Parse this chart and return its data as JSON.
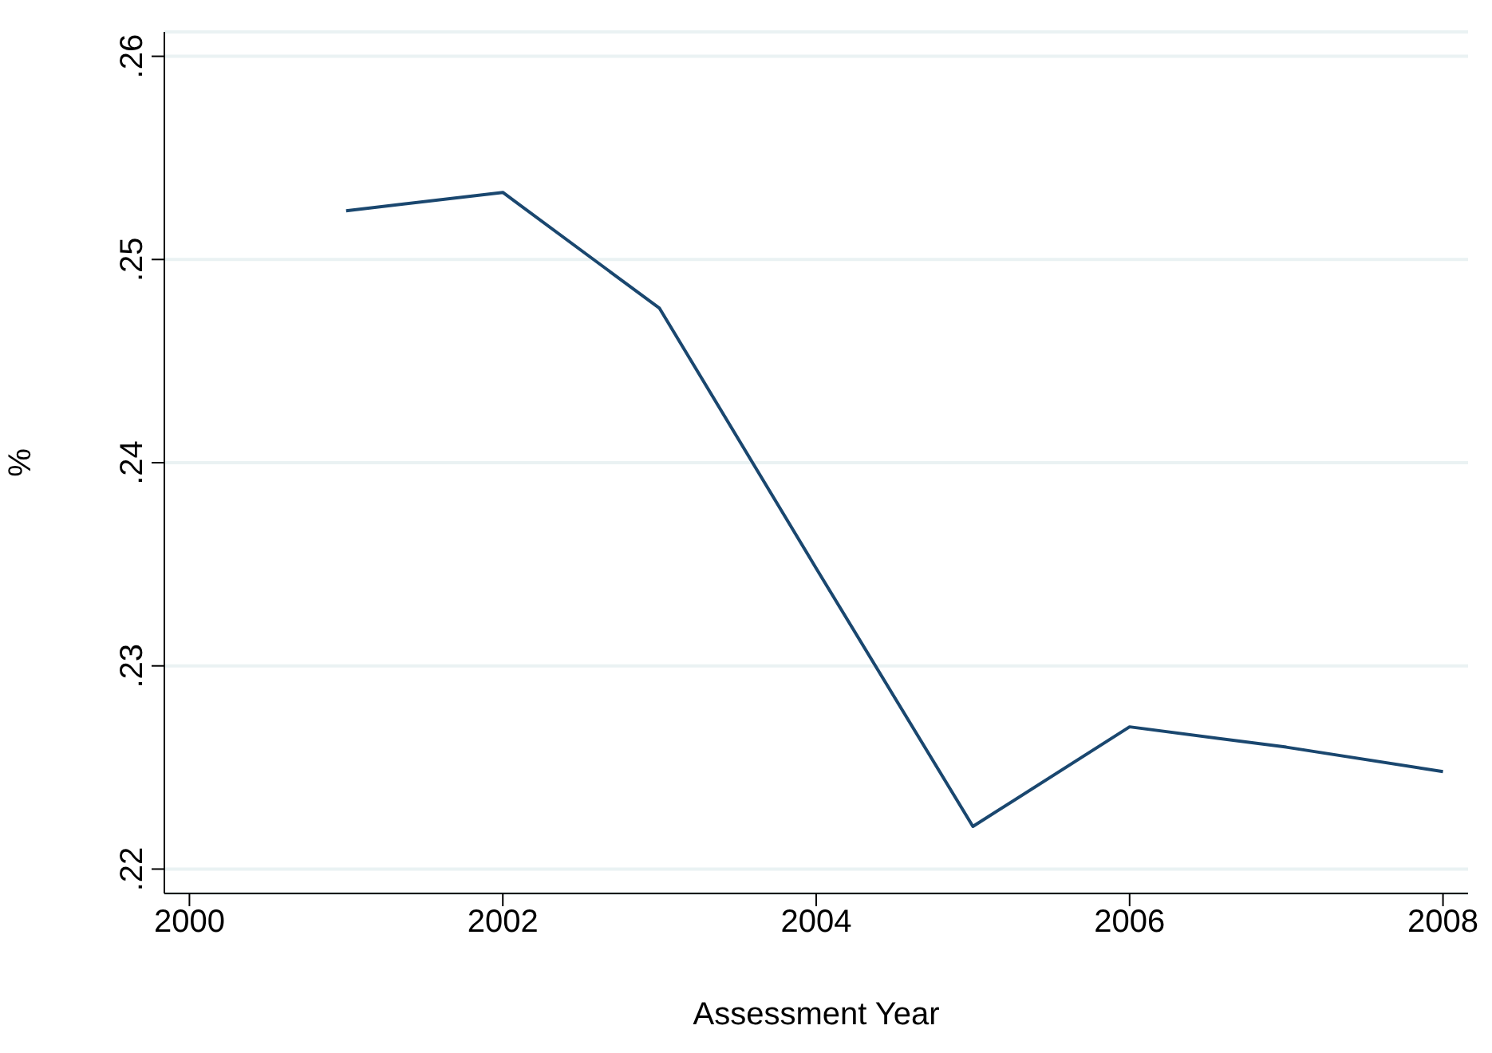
{
  "chart_data": {
    "type": "line",
    "xlabel": "Assessment Year",
    "ylabel": "%",
    "x": [
      2001,
      2002,
      2003,
      2004,
      2005,
      2006,
      2007,
      2008
    ],
    "series": [
      {
        "color": "#1a476f",
        "values": [
          0.2524,
          0.2533,
          0.2476,
          0.2348,
          0.2221,
          0.227,
          0.226,
          0.2248
        ]
      }
    ],
    "xlim": [
      1999.84,
      2008.16
    ],
    "xticks": [
      2000,
      2002,
      2004,
      2006,
      2008
    ],
    "ylim": [
      0.2188,
      0.2612
    ],
    "yticks": [
      {
        "value": 0.22,
        "label": ".22"
      },
      {
        "value": 0.23,
        "label": ".23"
      },
      {
        "value": 0.24,
        "label": ".24"
      },
      {
        "value": 0.25,
        "label": ".25"
      },
      {
        "value": 0.26,
        "label": ".26"
      }
    ],
    "grid": "y",
    "marker": "none",
    "line_style": "solid"
  }
}
